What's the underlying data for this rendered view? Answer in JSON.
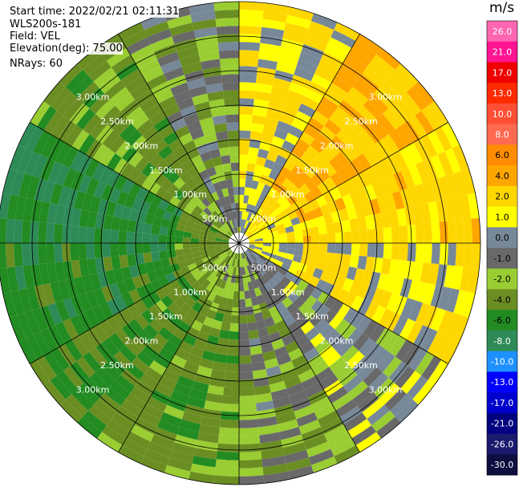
{
  "info": {
    "start_time": "Start time: 2022/02/21 02:11:31",
    "instrument": "WLS200s-181",
    "field": "Field: VEL",
    "elevation": "Elevation(deg): 75.00",
    "nrays": "NRays: 60"
  },
  "chart_data": {
    "type": "heatmap",
    "projection": "polar-ppi",
    "range_rings_km": [
      0.5,
      1.0,
      1.5,
      2.0,
      2.5,
      3.0
    ],
    "ring_labels": [
      "500m",
      "1.00km",
      "1.50km",
      "2.00km",
      "2.50km",
      "3.00km"
    ],
    "radial_lines_deg": [
      0,
      30,
      60,
      90,
      120,
      150,
      180,
      210,
      240,
      270,
      300,
      330
    ],
    "max_range_km": 3.5,
    "n_rays": 60,
    "colorbar": {
      "title": "m/s",
      "ticks": [
        "26.0",
        "21.0",
        "17.0",
        "13.0",
        "10.0",
        "8.0",
        "6.0",
        "4.0",
        "2.0",
        "1.0",
        "0.0",
        "-1.0",
        "-2.0",
        "-4.0",
        "-6.0",
        "-8.0",
        "-10.0",
        "-13.0",
        "-17.0",
        "-21.0",
        "-26.0",
        "-30.0"
      ],
      "colors": [
        "#ff66b2",
        "#ff1493",
        "#ee0000",
        "#ff2a00",
        "#ff4f35",
        "#ff6a50",
        "#ff8c00",
        "#ffa500",
        "#ffd700",
        "#ffff00",
        "#778899",
        "#696969",
        "#9acd32",
        "#6b8e23",
        "#228b22",
        "#2e8b57",
        "#1e90ff",
        "#0000ff",
        "#0000cd",
        "#000080",
        "#1a1a6e",
        "#0d0d40"
      ]
    },
    "velocity_sectors": [
      {
        "az_from": 0,
        "az_to": 30,
        "value": 2.0
      },
      {
        "az_from": 30,
        "az_to": 60,
        "value": 4.0
      },
      {
        "az_from": 60,
        "az_to": 90,
        "value": 3.0
      },
      {
        "az_from": 90,
        "az_to": 120,
        "value": 2.0
      },
      {
        "az_from": 120,
        "az_to": 150,
        "value": 0.0
      },
      {
        "az_from": 150,
        "az_to": 180,
        "value": -1.5
      },
      {
        "az_from": 180,
        "az_to": 210,
        "value": -3.0
      },
      {
        "az_from": 210,
        "az_to": 240,
        "value": -3.5
      },
      {
        "az_from": 240,
        "az_to": 270,
        "value": -5.0
      },
      {
        "az_from": 270,
        "az_to": 300,
        "value": -6.0
      },
      {
        "az_from": 300,
        "az_to": 330,
        "value": -3.0
      },
      {
        "az_from": 330,
        "az_to": 360,
        "value": -1.0
      }
    ]
  }
}
